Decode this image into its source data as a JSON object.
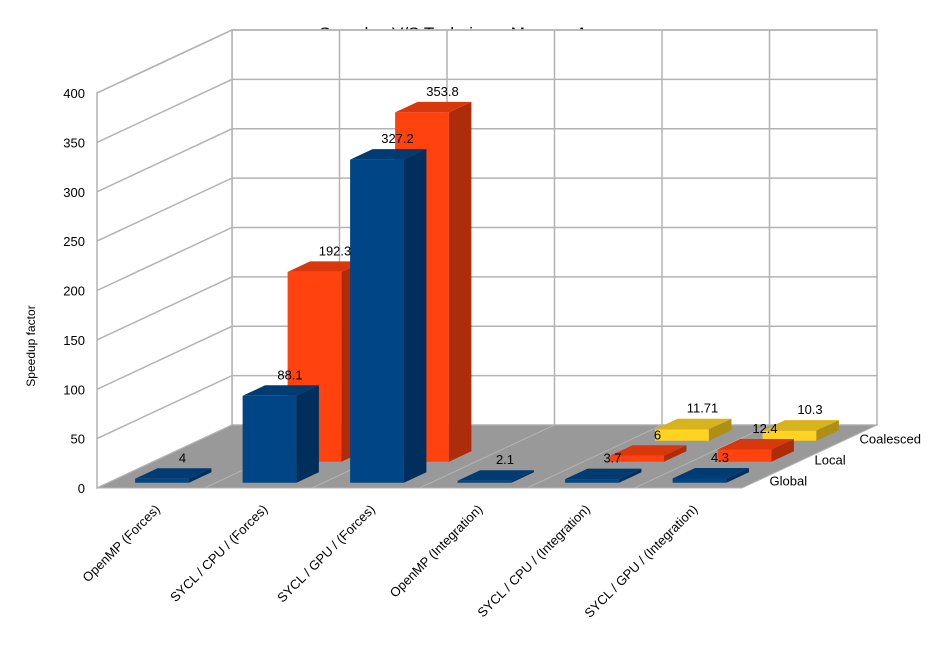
{
  "chart_data": {
    "type": "bar",
    "style": "3d-grouped-depth",
    "title": "Speedup V/S Technique, Memory Access",
    "xlabel": "",
    "ylabel": "Speedup factor",
    "ylim": [
      0,
      400
    ],
    "yticks": [
      "0",
      "50",
      "100",
      "150",
      "200",
      "250",
      "300",
      "350",
      "400"
    ],
    "grid": true,
    "categories": [
      "OpenMP (Forces)",
      "SYCL / CPU / (Forces)",
      "SYCL / GPU / (Forces)",
      "OpenMP (Integration)",
      "SYCL / CPU / (Integration)",
      "SYCL / GPU / (Integration)"
    ],
    "series": [
      {
        "name": "Global",
        "color": "#004586",
        "values": [
          4,
          88.1,
          327.2,
          2.1,
          3.7,
          4.3
        ],
        "labels": [
          "4",
          "88.1",
          "327.2",
          "2.1",
          "3.7",
          "4.3"
        ]
      },
      {
        "name": "Local",
        "color": "#ff420e",
        "values": [
          null,
          192.3,
          353.8,
          null,
          6,
          12.4
        ],
        "labels": [
          "",
          "192.3",
          "353.8",
          "",
          "6",
          "12.4"
        ]
      },
      {
        "name": "Coalesced",
        "color": "#ffd320",
        "values": [
          null,
          null,
          null,
          null,
          11.71,
          10.3
        ],
        "labels": [
          "",
          "",
          "",
          "",
          "11.71",
          "10.3"
        ]
      }
    ]
  }
}
